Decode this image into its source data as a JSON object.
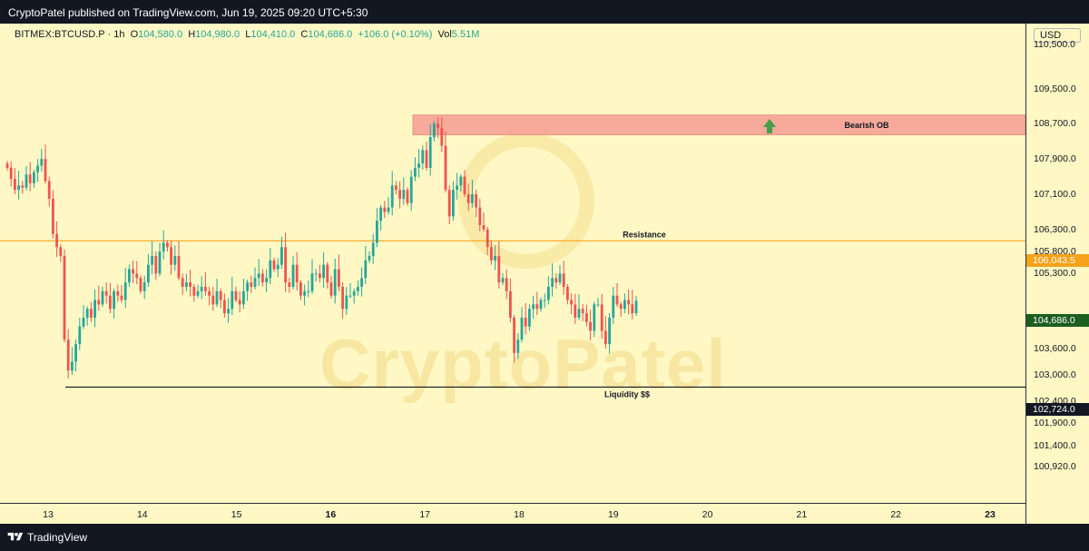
{
  "header": {
    "published": "CryptoPatel published on TradingView.com, Jun 19, 2025 09:20 UTC+5:30"
  },
  "legend": {
    "symbol": "BITMEX:BTCUSD.P · 1h",
    "o_label": "O",
    "o": "104,580.0",
    "h_label": "H",
    "h": "104,980.0",
    "l_label": "L",
    "l": "104,410.0",
    "c_label": "C",
    "c": "104,686.0",
    "change": "+106.0 (+0.10%)",
    "vol_label": "Vol",
    "vol": "5.51M"
  },
  "axis": {
    "currency": "USD",
    "y_ticks": [
      "110,500.0",
      "109,500.0",
      "108,700.0",
      "107,900.0",
      "107,100.0",
      "106,300.0",
      "105,800.0",
      "105,300.0",
      "104,200.0",
      "103,600.0",
      "103,000.0",
      "102,400.0",
      "101,900.0",
      "101,400.0",
      "100,920.0"
    ],
    "x_ticks": [
      "13",
      "14",
      "15",
      "16",
      "17",
      "18",
      "19",
      "20",
      "21",
      "22",
      "23"
    ],
    "x_bold": [
      "16",
      "23"
    ]
  },
  "badges": {
    "resistance_price": "106,043.5",
    "last_price": "104,686.0",
    "liquidity_price": "102,724.0"
  },
  "annotations": {
    "bearish_ob": "Bearish OB",
    "resistance": "Resistance",
    "liquidity": "Liquidity $$"
  },
  "watermark": "CryptoPatel",
  "footer": {
    "brand": "TradingView"
  },
  "colors": {
    "up": "#26a69a",
    "down": "#ef5350",
    "resistance": "#f7a21b",
    "ob_fill": "#f7a99a",
    "last": "#1b5e20",
    "bg": "#fff8c4"
  },
  "chart_data": {
    "type": "candlestick",
    "symbol": "BITMEX:BTCUSD.P",
    "interval": "1h",
    "x_labels": [
      "13",
      "14",
      "15",
      "16",
      "17",
      "18",
      "19",
      "20",
      "21",
      "22",
      "23"
    ],
    "ylim": [
      100700,
      111000
    ],
    "levels": [
      {
        "name": "Resistance",
        "price": 106043.5
      },
      {
        "name": "Liquidity $$",
        "price": 102724.0
      }
    ],
    "zones": [
      {
        "name": "Bearish OB",
        "from_price": 108450,
        "to_price": 108900,
        "start_day": 17
      }
    ],
    "last_price": 104686.0,
    "closes": [
      107700,
      107450,
      107200,
      107300,
      107250,
      107550,
      107350,
      107600,
      107750,
      107900,
      107400,
      107000,
      106200,
      105900,
      105700,
      103800,
      103100,
      103300,
      103700,
      104100,
      104300,
      104500,
      104300,
      104700,
      104600,
      104900,
      104800,
      104500,
      104900,
      104800,
      104700,
      105100,
      105400,
      105300,
      105200,
      104900,
      105100,
      105500,
      105700,
      105300,
      105800,
      106000,
      105900,
      105500,
      105700,
      105200,
      105000,
      105100,
      105000,
      104800,
      104900,
      105000,
      104900,
      104800,
      104600,
      104900,
      104700,
      104400,
      104500,
      104900,
      104700,
      104600,
      104900,
      105100,
      105000,
      105200,
      105300,
      105100,
      105200,
      105600,
      105400,
      105500,
      105900,
      105100,
      105000,
      105500,
      105100,
      104800,
      104900,
      104900,
      105300,
      105300,
      105200,
      105500,
      105100,
      104800,
      105400,
      105000,
      104500,
      104800,
      104800,
      104900,
      105000,
      105200,
      105600,
      105700,
      106000,
      106500,
      106800,
      106700,
      106800,
      107300,
      107200,
      107000,
      107200,
      106900,
      107500,
      107700,
      107800,
      108100,
      107700,
      108400,
      108700,
      108600,
      108200,
      107200,
      106600,
      107200,
      107300,
      107500,
      107100,
      106900,
      107100,
      106800,
      106400,
      106300,
      105900,
      105600,
      105700,
      105100,
      105200,
      104900,
      104300,
      103500,
      103800,
      104300,
      104100,
      104500,
      104600,
      104500,
      104700,
      104700,
      105000,
      105200,
      105100,
      105300,
      105000,
      104700,
      104600,
      104300,
      104500,
      104400,
      104200,
      104000,
      104600,
      104600,
      104000,
      103700,
      104300,
      104800,
      104600,
      104500,
      104700,
      104600,
      104400,
      104686
    ]
  }
}
